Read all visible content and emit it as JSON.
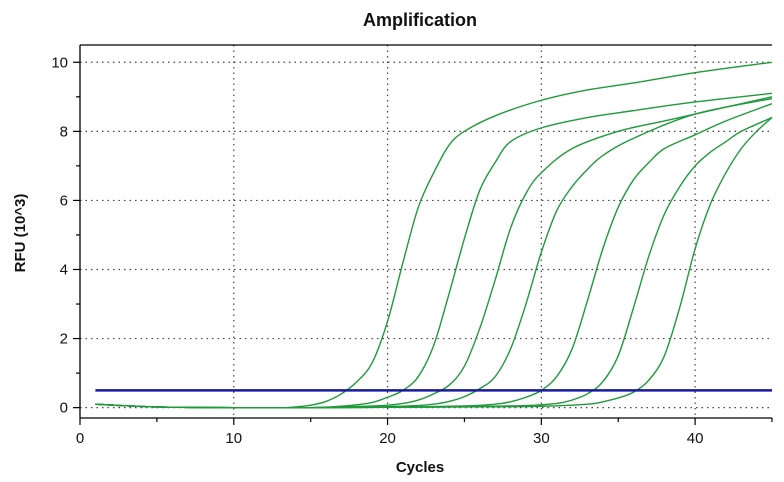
{
  "chart_data": {
    "type": "line",
    "title": "Amplification",
    "xlabel": "Cycles",
    "ylabel": "RFU (10^3)",
    "xlim": [
      0,
      45
    ],
    "ylim": [
      -0.3,
      10.5
    ],
    "xticks": [
      0,
      10,
      20,
      30,
      40
    ],
    "yticks": [
      0,
      2,
      4,
      6,
      8,
      10
    ],
    "grid": true,
    "grid_style": "dotted",
    "legend": "none",
    "colors": {
      "series": "#1f9a3a",
      "threshold": "#1a1a9e",
      "axis": "#000000",
      "grid": "#444444"
    },
    "threshold": 0.5,
    "series": [
      {
        "x": [
          1,
          5,
          10,
          13,
          14,
          15,
          16,
          17,
          18,
          19,
          20,
          21,
          22,
          23,
          24,
          25,
          27,
          30,
          33,
          36,
          40,
          45
        ],
        "y": [
          0.1,
          0.02,
          0,
          0,
          0.02,
          0.07,
          0.18,
          0.4,
          0.75,
          1.3,
          2.5,
          4.2,
          5.8,
          6.8,
          7.6,
          8.0,
          8.45,
          8.9,
          9.2,
          9.4,
          9.7,
          10.0
        ]
      },
      {
        "x": [
          1,
          5,
          10,
          15,
          17,
          18,
          19,
          20,
          21,
          22,
          23,
          24,
          25,
          26,
          27,
          28,
          30,
          33,
          36,
          40,
          45
        ],
        "y": [
          0.1,
          0.02,
          0,
          0,
          0.04,
          0.08,
          0.15,
          0.3,
          0.5,
          0.9,
          1.8,
          3.3,
          4.9,
          6.3,
          7.1,
          7.7,
          8.1,
          8.4,
          8.6,
          8.85,
          9.1
        ]
      },
      {
        "x": [
          1,
          5,
          10,
          15,
          18,
          20,
          21,
          22,
          23,
          24,
          25,
          26,
          27,
          28,
          29,
          30,
          32,
          35,
          38,
          41,
          45
        ],
        "y": [
          0.1,
          0.02,
          0,
          0,
          0.03,
          0.07,
          0.12,
          0.22,
          0.4,
          0.65,
          1.2,
          2.3,
          3.7,
          5.2,
          6.2,
          6.8,
          7.5,
          8.0,
          8.3,
          8.6,
          9.0
        ]
      },
      {
        "x": [
          1,
          5,
          10,
          15,
          20,
          22,
          23,
          24,
          25,
          26,
          27,
          28,
          29,
          30,
          31,
          32,
          33,
          34,
          36,
          40,
          45
        ],
        "y": [
          0.1,
          0.02,
          0,
          0,
          0.03,
          0.06,
          0.1,
          0.18,
          0.32,
          0.55,
          0.9,
          1.7,
          3.0,
          4.5,
          5.7,
          6.4,
          6.9,
          7.3,
          7.8,
          8.5,
          8.95
        ]
      },
      {
        "x": [
          1,
          5,
          10,
          15,
          20,
          25,
          27,
          28,
          29,
          30,
          31,
          32,
          33,
          34,
          35,
          36,
          37,
          38,
          40,
          42,
          45
        ],
        "y": [
          0.1,
          0.02,
          0,
          0,
          0.01,
          0.05,
          0.1,
          0.17,
          0.3,
          0.5,
          0.9,
          1.7,
          3.1,
          4.6,
          5.8,
          6.6,
          7.1,
          7.5,
          7.9,
          8.3,
          8.8
        ]
      },
      {
        "x": [
          1,
          5,
          10,
          15,
          20,
          25,
          29,
          31,
          32,
          33,
          34,
          35,
          36,
          37,
          38,
          39,
          40,
          41,
          42,
          43,
          45
        ],
        "y": [
          0.1,
          0.02,
          0,
          0,
          0.01,
          0.03,
          0.06,
          0.12,
          0.22,
          0.4,
          0.75,
          1.5,
          2.9,
          4.4,
          5.6,
          6.4,
          7.0,
          7.4,
          7.7,
          8.0,
          8.4
        ]
      },
      {
        "x": [
          1,
          5,
          10,
          15,
          20,
          25,
          30,
          33,
          34,
          35,
          36,
          37,
          38,
          39,
          40,
          41,
          42,
          43,
          44,
          45
        ],
        "y": [
          0.1,
          0.02,
          0,
          0,
          0.01,
          0.02,
          0.04,
          0.1,
          0.17,
          0.28,
          0.45,
          0.8,
          1.5,
          2.9,
          4.6,
          5.9,
          6.8,
          7.5,
          8.0,
          8.4
        ]
      }
    ]
  }
}
